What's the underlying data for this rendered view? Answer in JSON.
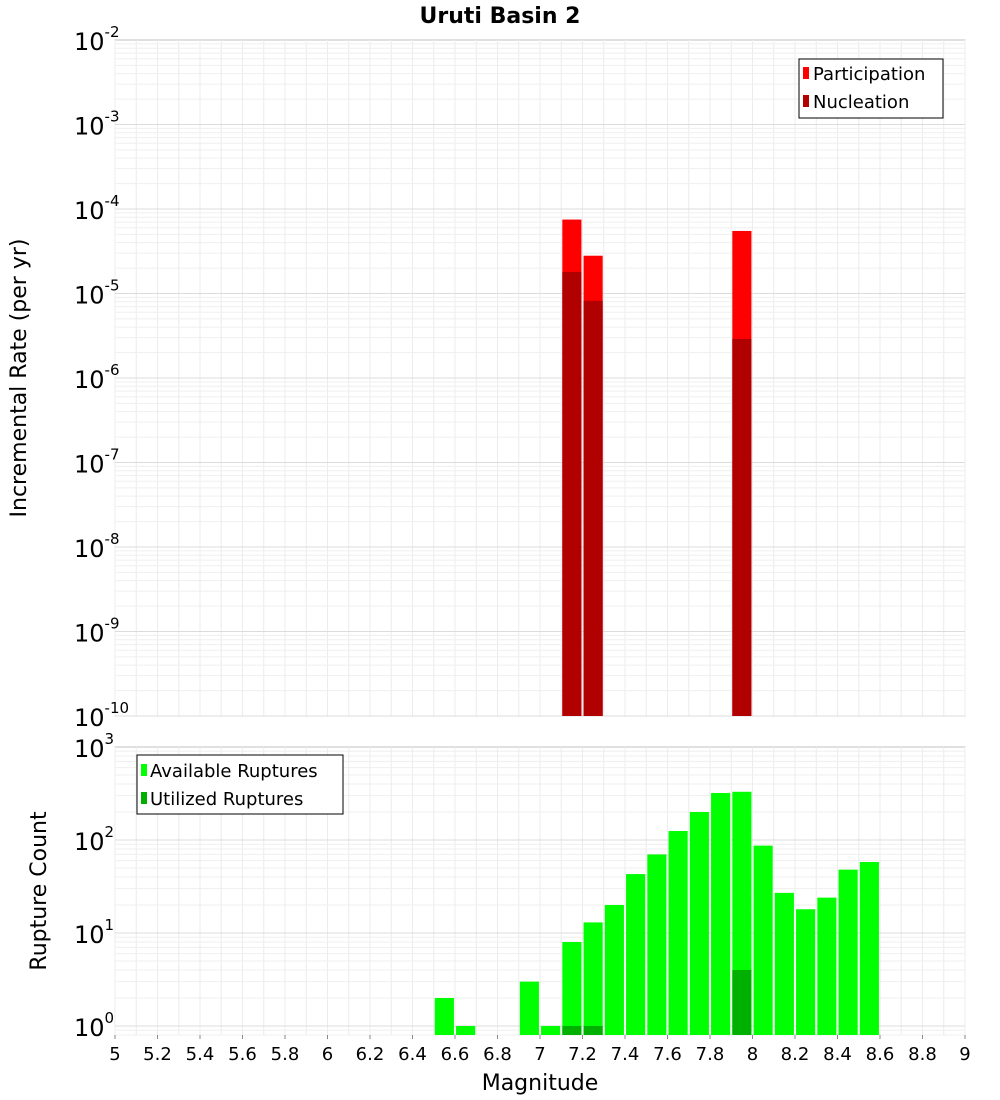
{
  "chart_data": [
    {
      "type": "bar",
      "title": "Uruti Basin 2",
      "xlabel": "",
      "ylabel": "Incremental Rate (per yr)",
      "xlim": [
        5,
        9
      ],
      "yscale": "log",
      "ylim": [
        1e-10,
        0.01
      ],
      "grid": true,
      "legend_position": "top-right",
      "bar_width": 0.09,
      "series": [
        {
          "name": "Participation",
          "color": "#ff0000",
          "points": [
            {
              "x": 7.15,
              "y": 7.5e-05
            },
            {
              "x": 7.25,
              "y": 2.8e-05
            },
            {
              "x": 7.95,
              "y": 5.5e-05
            }
          ]
        },
        {
          "name": "Nucleation",
          "color": "#b00000",
          "points": [
            {
              "x": 7.15,
              "y": 1.8e-05
            },
            {
              "x": 7.25,
              "y": 8.2e-06
            },
            {
              "x": 7.95,
              "y": 2.9e-06
            }
          ]
        }
      ],
      "y_ticks": [
        {
          "base": "10",
          "exp": "-10",
          "value": 1e-10
        },
        {
          "base": "10",
          "exp": "-9",
          "value": 1e-09
        },
        {
          "base": "10",
          "exp": "-8",
          "value": 1e-08
        },
        {
          "base": "10",
          "exp": "-7",
          "value": 1e-07
        },
        {
          "base": "10",
          "exp": "-6",
          "value": 1e-06
        },
        {
          "base": "10",
          "exp": "-5",
          "value": 1e-05
        },
        {
          "base": "10",
          "exp": "-4",
          "value": 0.0001
        },
        {
          "base": "10",
          "exp": "-3",
          "value": 0.001
        },
        {
          "base": "10",
          "exp": "-2",
          "value": 0.01
        }
      ]
    },
    {
      "type": "bar",
      "title": "",
      "xlabel": "Magnitude",
      "ylabel": "Rupture Count",
      "xlim": [
        5,
        9
      ],
      "yscale": "log",
      "ylim": [
        0.8,
        1000
      ],
      "grid": true,
      "legend_position": "top-left",
      "bar_width": 0.09,
      "series": [
        {
          "name": "Available Ruptures",
          "color": "#00ff00",
          "points": [
            {
              "x": 6.55,
              "y": 2
            },
            {
              "x": 6.65,
              "y": 1
            },
            {
              "x": 6.95,
              "y": 3
            },
            {
              "x": 7.05,
              "y": 1
            },
            {
              "x": 7.15,
              "y": 8
            },
            {
              "x": 7.25,
              "y": 13
            },
            {
              "x": 7.35,
              "y": 20
            },
            {
              "x": 7.45,
              "y": 43
            },
            {
              "x": 7.55,
              "y": 70
            },
            {
              "x": 7.65,
              "y": 125
            },
            {
              "x": 7.75,
              "y": 200
            },
            {
              "x": 7.85,
              "y": 320
            },
            {
              "x": 7.95,
              "y": 330
            },
            {
              "x": 8.05,
              "y": 87
            },
            {
              "x": 8.15,
              "y": 27
            },
            {
              "x": 8.25,
              "y": 18
            },
            {
              "x": 8.35,
              "y": 24
            },
            {
              "x": 8.45,
              "y": 48
            },
            {
              "x": 8.55,
              "y": 58
            }
          ]
        },
        {
          "name": "Utilized Ruptures",
          "color": "#00b000",
          "points": [
            {
              "x": 7.15,
              "y": 1
            },
            {
              "x": 7.25,
              "y": 1
            },
            {
              "x": 7.95,
              "y": 4
            }
          ]
        }
      ],
      "y_ticks": [
        {
          "base": "10",
          "exp": "0",
          "value": 1
        },
        {
          "base": "10",
          "exp": "1",
          "value": 10
        },
        {
          "base": "10",
          "exp": "2",
          "value": 100
        },
        {
          "base": "10",
          "exp": "3",
          "value": 1000
        }
      ],
      "x_ticks": [
        "5",
        "5.2",
        "5.4",
        "5.6",
        "5.8",
        "6",
        "6.2",
        "6.4",
        "6.6",
        "6.8",
        "7",
        "7.2",
        "7.4",
        "7.6",
        "7.8",
        "8",
        "8.2",
        "8.4",
        "8.6",
        "8.8",
        "9"
      ]
    }
  ]
}
